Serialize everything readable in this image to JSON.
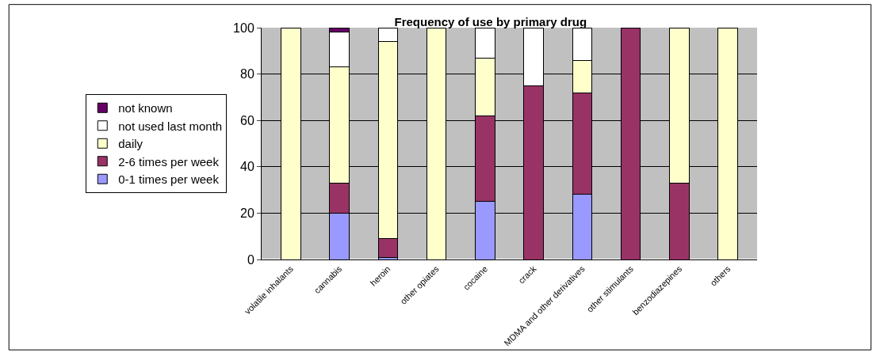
{
  "chart_data": {
    "type": "bar",
    "title": "Frequency of use by primary drug",
    "stacked": true,
    "categories": [
      "volatile inhalants",
      "cannabis",
      "heroin",
      "other opiates",
      "cocaine",
      "crack",
      "MDMA and other derivatives",
      "other stimulants",
      "benzodiazepines",
      "others"
    ],
    "series": [
      {
        "name": "0-1 times per week",
        "color": "#9999ff",
        "values": [
          0,
          20,
          1,
          0,
          25,
          0,
          28,
          0,
          0,
          0
        ]
      },
      {
        "name": "2-6 times per week",
        "color": "#993366",
        "values": [
          0,
          13,
          8,
          0,
          37,
          75,
          44,
          100,
          33,
          0
        ]
      },
      {
        "name": "daily",
        "color": "#ffffcc",
        "values": [
          100,
          50,
          85,
          100,
          25,
          0,
          14,
          0,
          67,
          100
        ]
      },
      {
        "name": "not used last month",
        "color": "#ffffff",
        "values": [
          0,
          15,
          6,
          0,
          13,
          25,
          14,
          0,
          0,
          0
        ]
      },
      {
        "name": "not known",
        "color": "#660066",
        "values": [
          0,
          2,
          0,
          0,
          0,
          0,
          0,
          0,
          0,
          0
        ]
      }
    ],
    "ylim": [
      0,
      100
    ],
    "yticks": [
      0,
      20,
      40,
      60,
      80,
      100
    ],
    "grid": "y",
    "legend": "left"
  }
}
